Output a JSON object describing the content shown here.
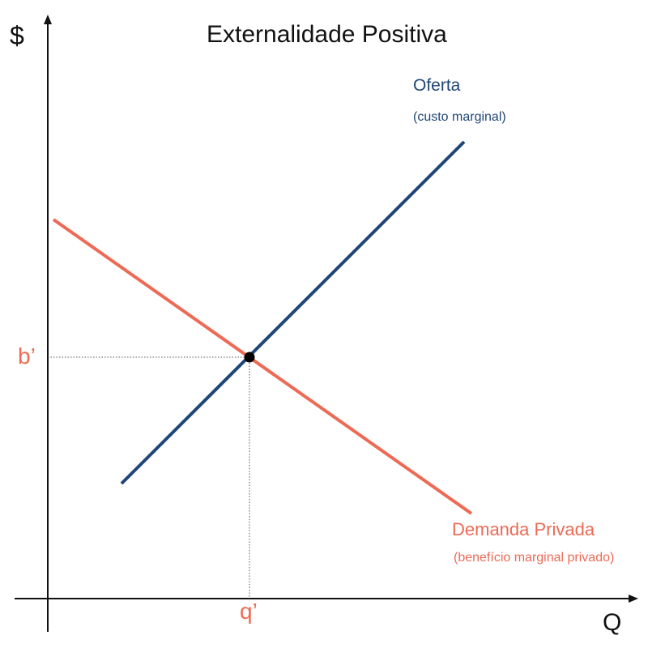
{
  "title": "Externalidade Positiva",
  "y_axis_label": "$",
  "x_axis_label": "Q",
  "colors": {
    "supply": "#1f4676",
    "demand": "#ed6a55",
    "axis": "#111111",
    "point": "#000000",
    "guide": "#555555"
  },
  "curves": {
    "supply": {
      "name": "Oferta",
      "description": "(custo marginal)"
    },
    "demand": {
      "name": "Demanda Privada",
      "description": "(benefício marginal privado)"
    }
  },
  "equilibrium": {
    "price_label": "b’",
    "quantity_label": "q’"
  }
}
